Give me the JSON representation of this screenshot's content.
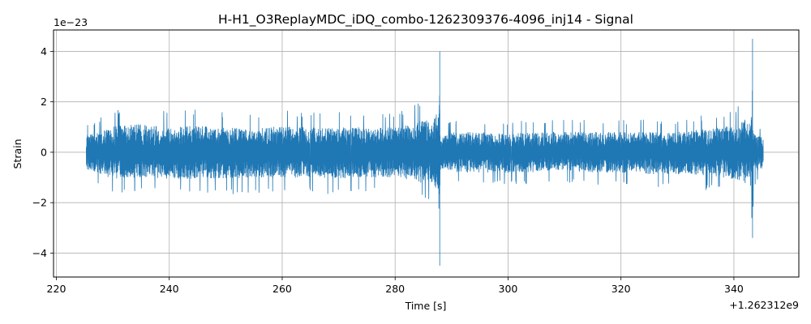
{
  "chart_data": {
    "type": "line",
    "title": "H-H1_O3ReplayMDC_iDQ_combo-1262309376-4096_inj14 - Signal",
    "xlabel": "Time [s]",
    "ylabel": "Strain",
    "x_offset_label": "+1.262312e9",
    "y_scale_label": "1e−23",
    "xlim": [
      219.5,
      351.5
    ],
    "ylim": [
      -4.95,
      4.85
    ],
    "xticks": [
      220,
      240,
      260,
      280,
      300,
      320,
      340
    ],
    "xtick_labels": [
      "220",
      "240",
      "260",
      "280",
      "300",
      "320",
      "340"
    ],
    "yticks": [
      -4,
      -2,
      0,
      2,
      4
    ],
    "ytick_labels": [
      "−4",
      "−2",
      "0",
      "2",
      "4"
    ],
    "grid": true,
    "color": "#1f77b4",
    "series": [
      {
        "x": [
          225.3,
          230,
          235,
          240,
          245,
          250,
          255,
          260,
          265,
          270,
          275,
          280,
          283,
          285,
          286.5,
          287.5,
          287.9,
          288.0,
          288.1,
          288.5,
          290,
          295,
          300,
          305,
          310,
          315,
          320,
          325,
          330,
          335,
          338,
          340,
          342,
          343.0,
          343.3,
          343.5,
          344,
          345.2
        ],
        "y_max": [
          1.1,
          1.7,
          1.8,
          1.6,
          1.7,
          1.6,
          1.5,
          1.7,
          1.6,
          1.6,
          1.6,
          1.6,
          1.8,
          2.1,
          2.2,
          2.8,
          4.0,
          0.9,
          0.8,
          1.0,
          1.3,
          1.3,
          1.2,
          1.3,
          1.3,
          1.3,
          1.3,
          1.3,
          1.3,
          1.5,
          1.6,
          1.8,
          2.1,
          2.2,
          4.5,
          1.2,
          1.1,
          1.0
        ],
        "y_min": [
          -1.1,
          -1.7,
          -1.6,
          -1.7,
          -1.7,
          -1.7,
          -1.6,
          -1.7,
          -1.6,
          -1.7,
          -1.6,
          -1.6,
          -1.8,
          -2.0,
          -2.0,
          -2.4,
          -4.5,
          -1.4,
          -1.0,
          -1.1,
          -1.3,
          -1.3,
          -1.3,
          -1.3,
          -1.2,
          -1.3,
          -1.3,
          -1.4,
          -1.4,
          -1.5,
          -1.6,
          -1.8,
          -2.0,
          -2.2,
          -3.4,
          -1.4,
          -1.3,
          -1.0
        ]
      }
    ]
  }
}
